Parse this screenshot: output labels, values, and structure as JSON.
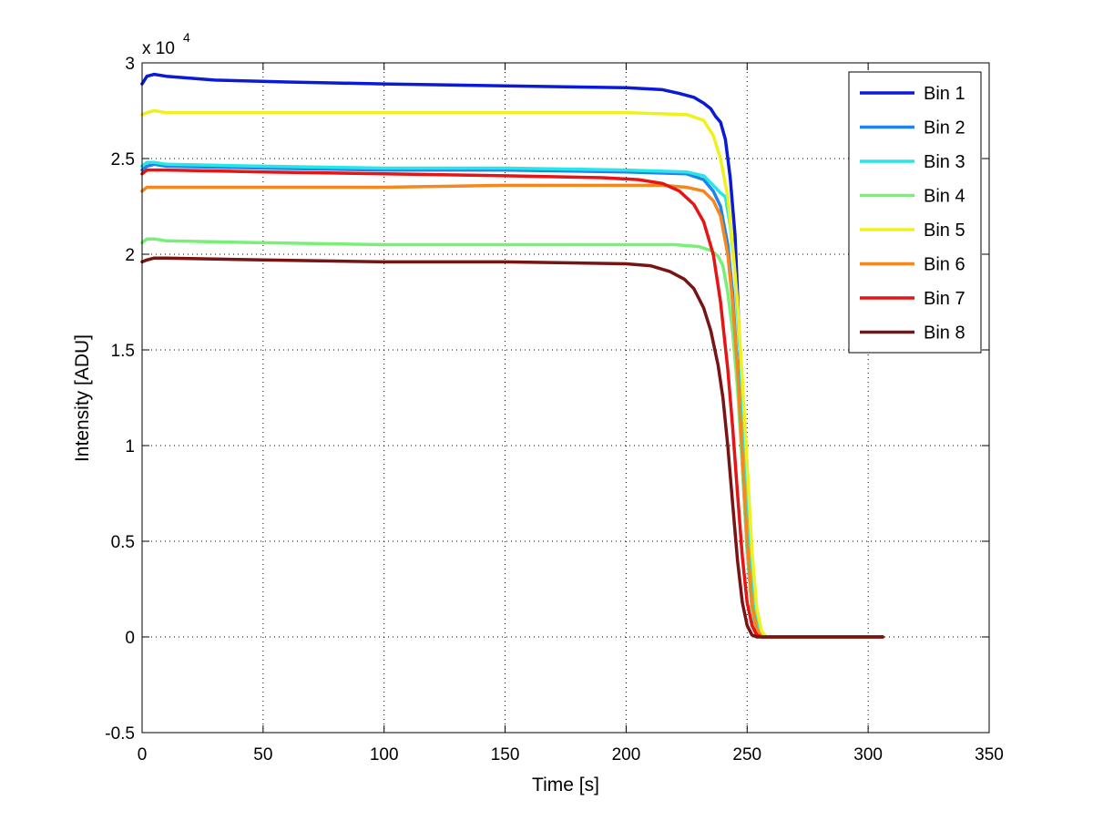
{
  "chart_data": {
    "type": "line",
    "xlabel": "Time [s]",
    "ylabel": "Intensity [ADU]",
    "y_multiplier_label": "x 10",
    "y_multiplier_exponent": "4",
    "xlim": [
      0,
      350
    ],
    "ylim": [
      -0.5,
      3
    ],
    "x_ticks": [
      "0",
      "50",
      "100",
      "150",
      "200",
      "250",
      "300",
      "350"
    ],
    "y_ticks": [
      "-0.5",
      "0",
      "0.5",
      "1",
      "1.5",
      "2",
      "2.5",
      "3"
    ],
    "grid": true,
    "legend_position": "top-right",
    "series": [
      {
        "name": "Bin 1",
        "color": "#0a1ad6",
        "x": [
          0,
          2,
          5,
          10,
          30,
          60,
          100,
          150,
          200,
          215,
          222,
          228,
          232,
          235,
          237,
          239,
          241,
          243,
          245,
          247,
          249,
          251,
          253,
          255,
          258,
          262,
          280,
          300,
          306
        ],
        "y": [
          2.89,
          2.93,
          2.94,
          2.93,
          2.91,
          2.9,
          2.89,
          2.88,
          2.87,
          2.86,
          2.84,
          2.82,
          2.79,
          2.76,
          2.72,
          2.69,
          2.6,
          2.4,
          2.1,
          1.5,
          0.8,
          0.3,
          0.08,
          0.01,
          0,
          0,
          0,
          0,
          0
        ]
      },
      {
        "name": "Bin 2",
        "color": "#1e82f0",
        "x": [
          0,
          2,
          5,
          10,
          50,
          100,
          150,
          200,
          225,
          232,
          236,
          239,
          242,
          244,
          246,
          248,
          250,
          252,
          254,
          256,
          260,
          280,
          306
        ],
        "y": [
          2.44,
          2.46,
          2.47,
          2.46,
          2.45,
          2.44,
          2.44,
          2.43,
          2.42,
          2.39,
          2.33,
          2.25,
          2.05,
          1.8,
          1.4,
          0.9,
          0.45,
          0.15,
          0.03,
          0,
          0,
          0,
          0
        ]
      },
      {
        "name": "Bin 3",
        "color": "#28e6e6",
        "x": [
          0,
          2,
          5,
          10,
          50,
          100,
          150,
          200,
          225,
          232,
          236,
          239,
          241,
          243,
          245,
          247,
          249,
          251,
          253,
          255,
          257,
          260,
          306
        ],
        "y": [
          2.46,
          2.48,
          2.48,
          2.47,
          2.46,
          2.45,
          2.45,
          2.44,
          2.43,
          2.41,
          2.36,
          2.32,
          2.3,
          2.15,
          1.9,
          1.5,
          1.0,
          0.5,
          0.15,
          0.03,
          0,
          0,
          0
        ]
      },
      {
        "name": "Bin 4",
        "color": "#78f078",
        "x": [
          0,
          2,
          5,
          10,
          50,
          100,
          150,
          200,
          220,
          230,
          235,
          238,
          240,
          242,
          244,
          246,
          248,
          250,
          252,
          254,
          256,
          260,
          306
        ],
        "y": [
          2.06,
          2.08,
          2.08,
          2.07,
          2.06,
          2.05,
          2.05,
          2.05,
          2.05,
          2.04,
          2.02,
          1.99,
          1.94,
          1.8,
          1.6,
          1.3,
          0.9,
          0.45,
          0.15,
          0.03,
          0,
          0,
          0
        ]
      },
      {
        "name": "Bin 5",
        "color": "#f0f01e",
        "x": [
          0,
          2,
          5,
          10,
          50,
          100,
          150,
          200,
          225,
          232,
          236,
          239,
          242,
          244,
          246,
          248,
          250,
          252,
          254,
          256,
          258,
          262,
          306
        ],
        "y": [
          2.73,
          2.74,
          2.75,
          2.74,
          2.74,
          2.74,
          2.74,
          2.74,
          2.73,
          2.7,
          2.62,
          2.5,
          2.3,
          2.05,
          1.75,
          1.35,
          0.9,
          0.45,
          0.15,
          0.03,
          0,
          0,
          0
        ]
      },
      {
        "name": "Bin 6",
        "color": "#f5871e",
        "x": [
          0,
          2,
          5,
          10,
          50,
          100,
          150,
          200,
          215,
          225,
          232,
          236,
          239,
          242,
          244,
          246,
          248,
          250,
          252,
          254,
          256,
          260,
          306
        ],
        "y": [
          2.33,
          2.35,
          2.35,
          2.35,
          2.35,
          2.35,
          2.36,
          2.36,
          2.36,
          2.35,
          2.33,
          2.28,
          2.2,
          2.0,
          1.75,
          1.4,
          0.95,
          0.5,
          0.17,
          0.04,
          0,
          0,
          0
        ]
      },
      {
        "name": "Bin 7",
        "color": "#e61414",
        "x": [
          0,
          2,
          5,
          10,
          50,
          100,
          150,
          190,
          205,
          215,
          222,
          228,
          232,
          236,
          239,
          242,
          244,
          246,
          248,
          250,
          252,
          254,
          256,
          260,
          306
        ],
        "y": [
          2.42,
          2.44,
          2.44,
          2.44,
          2.43,
          2.42,
          2.41,
          2.4,
          2.39,
          2.37,
          2.33,
          2.26,
          2.17,
          2.0,
          1.75,
          1.4,
          1.1,
          0.75,
          0.42,
          0.18,
          0.06,
          0.01,
          0,
          0,
          0
        ]
      },
      {
        "name": "Bin 8",
        "color": "#781414",
        "x": [
          0,
          2,
          5,
          10,
          50,
          100,
          150,
          200,
          210,
          218,
          224,
          228,
          232,
          235,
          238,
          240,
          242,
          244,
          246,
          248,
          250,
          252,
          254,
          256,
          260,
          306
        ],
        "y": [
          1.96,
          1.97,
          1.98,
          1.98,
          1.97,
          1.96,
          1.96,
          1.95,
          1.94,
          1.91,
          1.87,
          1.82,
          1.72,
          1.6,
          1.42,
          1.25,
          1.0,
          0.7,
          0.4,
          0.18,
          0.06,
          0.01,
          0,
          0,
          0,
          0
        ]
      }
    ]
  }
}
